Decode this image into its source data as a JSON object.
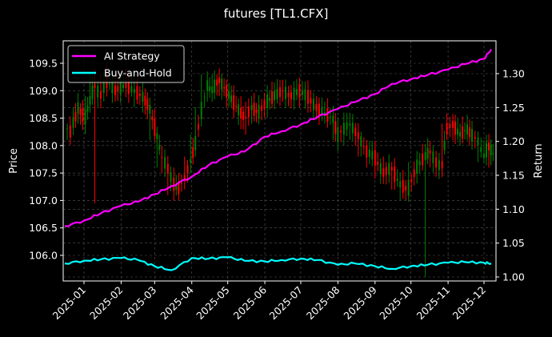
{
  "chart_data": {
    "type": "line",
    "subtype": "candlestick with dual-axis return lines",
    "title": "futures [TL1.CFX]",
    "xlabel": "",
    "ylabel": "Price",
    "ylabel_right": "Return",
    "ylim": [
      105.6,
      109.9
    ],
    "ylim_right": [
      0.995,
      1.343
    ],
    "yticks": [
      "106.0",
      "106.5",
      "107.0",
      "107.5",
      "108.0",
      "108.5",
      "109.0",
      "109.5"
    ],
    "yticks_right": [
      "1.00",
      "1.05",
      "1.10",
      "1.15",
      "1.20",
      "1.25",
      "1.30"
    ],
    "xticks": [
      "2025-01",
      "2025-02",
      "2025-03",
      "2025-04",
      "2025-05",
      "2025-06",
      "2025-07",
      "2025-08",
      "2025-09",
      "2025-10",
      "2025-11",
      "2025-12"
    ],
    "grid": true,
    "legend": {
      "position": "upper left",
      "entries": [
        {
          "label": "AI Strategy",
          "color": "#ff00ff"
        },
        {
          "label": "Buy-and-Hold",
          "color": "#00ffff"
        }
      ]
    },
    "colors": {
      "background": "#000000",
      "up": "#008000",
      "down": "#ff0000",
      "axis": "#ffffff",
      "grid": "#555555"
    },
    "candles": [
      {
        "d": "2024-12-18",
        "o": 108.3,
        "h": 108.4,
        "l": 108.1,
        "c": 108.2
      },
      {
        "d": "2024-12-23",
        "o": 108.4,
        "h": 108.7,
        "l": 108.2,
        "c": 108.6
      },
      {
        "d": "2024-12-27",
        "o": 108.7,
        "h": 108.8,
        "l": 108.4,
        "c": 108.5
      },
      {
        "d": "2025-01-02",
        "o": 108.5,
        "h": 108.9,
        "l": 108.3,
        "c": 108.8
      },
      {
        "d": "2025-01-06",
        "o": 108.8,
        "h": 109.3,
        "l": 108.6,
        "c": 109.1
      },
      {
        "d": "2025-01-10",
        "o": 109.1,
        "h": 109.4,
        "l": 106.95,
        "c": 108.9
      },
      {
        "d": "2025-01-15",
        "o": 108.9,
        "h": 109.3,
        "l": 108.7,
        "c": 109.2
      },
      {
        "d": "2025-01-20",
        "o": 109.2,
        "h": 109.5,
        "l": 108.9,
        "c": 109.0
      },
      {
        "d": "2025-01-27",
        "o": 109.0,
        "h": 109.3,
        "l": 108.8,
        "c": 109.1
      },
      {
        "d": "2025-02-05",
        "o": 109.1,
        "h": 109.4,
        "l": 108.9,
        "c": 109.0
      },
      {
        "d": "2025-02-12",
        "o": 109.0,
        "h": 109.2,
        "l": 108.7,
        "c": 108.9
      },
      {
        "d": "2025-02-19",
        "o": 108.9,
        "h": 109.1,
        "l": 108.6,
        "c": 108.7
      },
      {
        "d": "2025-02-25",
        "o": 108.7,
        "h": 108.8,
        "l": 108.1,
        "c": 108.2
      },
      {
        "d": "2025-03-03",
        "o": 108.2,
        "h": 108.3,
        "l": 107.6,
        "c": 107.8
      },
      {
        "d": "2025-03-07",
        "o": 107.8,
        "h": 108.0,
        "l": 107.5,
        "c": 107.6
      },
      {
        "d": "2025-03-12",
        "o": 107.6,
        "h": 107.8,
        "l": 107.1,
        "c": 107.3
      },
      {
        "d": "2025-03-17",
        "o": 107.3,
        "h": 107.6,
        "l": 107.05,
        "c": 107.2
      },
      {
        "d": "2025-03-21",
        "o": 107.2,
        "h": 107.5,
        "l": 107.0,
        "c": 107.4
      },
      {
        "d": "2025-03-26",
        "o": 107.4,
        "h": 107.8,
        "l": 107.2,
        "c": 107.7
      },
      {
        "d": "2025-03-31",
        "o": 107.7,
        "h": 108.2,
        "l": 107.5,
        "c": 108.0
      },
      {
        "d": "2025-04-04",
        "o": 108.0,
        "h": 108.7,
        "l": 107.8,
        "c": 108.6
      },
      {
        "d": "2025-04-09",
        "o": 108.6,
        "h": 109.3,
        "l": 108.4,
        "c": 109.1
      },
      {
        "d": "2025-04-14",
        "o": 109.1,
        "h": 109.35,
        "l": 108.8,
        "c": 109.0
      },
      {
        "d": "2025-04-18",
        "o": 109.0,
        "h": 109.3,
        "l": 108.8,
        "c": 109.2
      },
      {
        "d": "2025-04-24",
        "o": 109.2,
        "h": 109.35,
        "l": 108.9,
        "c": 109.0
      },
      {
        "d": "2025-04-30",
        "o": 109.0,
        "h": 109.2,
        "l": 108.7,
        "c": 108.8
      },
      {
        "d": "2025-05-06",
        "o": 108.8,
        "h": 109.1,
        "l": 108.5,
        "c": 108.6
      },
      {
        "d": "2025-05-12",
        "o": 108.6,
        "h": 108.9,
        "l": 108.3,
        "c": 108.5
      },
      {
        "d": "2025-05-16",
        "o": 108.5,
        "h": 108.8,
        "l": 108.2,
        "c": 108.7
      },
      {
        "d": "2025-05-21",
        "o": 108.7,
        "h": 108.9,
        "l": 108.4,
        "c": 108.6
      },
      {
        "d": "2025-05-27",
        "o": 108.6,
        "h": 108.9,
        "l": 108.4,
        "c": 108.8
      },
      {
        "d": "2025-06-03",
        "o": 108.8,
        "h": 109.1,
        "l": 108.6,
        "c": 108.9
      },
      {
        "d": "2025-06-09",
        "o": 108.9,
        "h": 109.15,
        "l": 108.7,
        "c": 109.0
      },
      {
        "d": "2025-06-16",
        "o": 109.0,
        "h": 109.2,
        "l": 108.8,
        "c": 108.9
      },
      {
        "d": "2025-06-23",
        "o": 108.9,
        "h": 109.1,
        "l": 108.7,
        "c": 109.0
      },
      {
        "d": "2025-06-30",
        "o": 109.0,
        "h": 109.2,
        "l": 108.8,
        "c": 108.9
      },
      {
        "d": "2025-07-07",
        "o": 108.9,
        "h": 109.1,
        "l": 108.6,
        "c": 108.7
      },
      {
        "d": "2025-07-14",
        "o": 108.7,
        "h": 108.9,
        "l": 108.5,
        "c": 108.6
      },
      {
        "d": "2025-07-21",
        "o": 108.6,
        "h": 108.8,
        "l": 108.4,
        "c": 108.5
      },
      {
        "d": "2025-07-28",
        "o": 108.5,
        "h": 108.7,
        "l": 108.1,
        "c": 108.2
      },
      {
        "d": "2025-08-01",
        "o": 108.2,
        "h": 108.5,
        "l": 107.9,
        "c": 108.3
      },
      {
        "d": "2025-08-06",
        "o": 108.3,
        "h": 108.6,
        "l": 108.0,
        "c": 108.4
      },
      {
        "d": "2025-08-11",
        "o": 108.4,
        "h": 108.6,
        "l": 108.1,
        "c": 108.2
      },
      {
        "d": "2025-08-18",
        "o": 108.2,
        "h": 108.4,
        "l": 107.8,
        "c": 107.9
      },
      {
        "d": "2025-08-25",
        "o": 107.9,
        "h": 108.1,
        "l": 107.6,
        "c": 107.8
      },
      {
        "d": "2025-09-01",
        "o": 107.8,
        "h": 108.0,
        "l": 107.4,
        "c": 107.5
      },
      {
        "d": "2025-09-08",
        "o": 107.5,
        "h": 107.8,
        "l": 107.3,
        "c": 107.6
      },
      {
        "d": "2025-09-15",
        "o": 107.6,
        "h": 107.7,
        "l": 107.2,
        "c": 107.3
      },
      {
        "d": "2025-09-22",
        "o": 107.3,
        "h": 107.5,
        "l": 107.0,
        "c": 107.2
      },
      {
        "d": "2025-09-29",
        "o": 107.2,
        "h": 107.7,
        "l": 107.1,
        "c": 107.6
      },
      {
        "d": "2025-10-06",
        "o": 107.6,
        "h": 107.9,
        "l": 107.4,
        "c": 107.8
      },
      {
        "d": "2025-10-13",
        "o": 107.8,
        "h": 108.0,
        "l": 105.6,
        "c": 107.9
      },
      {
        "d": "2025-10-17",
        "o": 107.9,
        "h": 108.0,
        "l": 107.6,
        "c": 107.7
      },
      {
        "d": "2025-10-22",
        "o": 107.7,
        "h": 107.9,
        "l": 107.5,
        "c": 107.6
      },
      {
        "d": "2025-10-27",
        "o": 107.6,
        "h": 108.4,
        "l": 107.5,
        "c": 108.3
      },
      {
        "d": "2025-10-31",
        "o": 108.3,
        "h": 108.5,
        "l": 108.1,
        "c": 108.4
      },
      {
        "d": "2025-11-05",
        "o": 108.4,
        "h": 108.5,
        "l": 108.1,
        "c": 108.2
      },
      {
        "d": "2025-11-11",
        "o": 108.2,
        "h": 108.4,
        "l": 108.0,
        "c": 108.3
      },
      {
        "d": "2025-11-17",
        "o": 108.3,
        "h": 108.4,
        "l": 108.1,
        "c": 108.2
      },
      {
        "d": "2025-11-21",
        "o": 108.2,
        "h": 108.4,
        "l": 108.0,
        "c": 108.1
      },
      {
        "d": "2025-11-26",
        "o": 108.1,
        "h": 108.2,
        "l": 107.7,
        "c": 107.8
      },
      {
        "d": "2025-12-01",
        "o": 107.8,
        "h": 108.1,
        "l": 107.7,
        "c": 108.0
      },
      {
        "d": "2025-12-05",
        "o": 108.0,
        "h": 108.1,
        "l": 107.6,
        "c": 107.8
      }
    ],
    "series": [
      {
        "name": "AI Strategy",
        "axis": "right",
        "color": "#ff00ff",
        "x": [
          "2024-12-16",
          "2025-01-01",
          "2025-01-15",
          "2025-02-01",
          "2025-02-15",
          "2025-03-01",
          "2025-03-15",
          "2025-04-01",
          "2025-04-15",
          "2025-05-01",
          "2025-05-15",
          "2025-06-01",
          "2025-06-15",
          "2025-07-01",
          "2025-07-15",
          "2025-08-01",
          "2025-08-15",
          "2025-09-01",
          "2025-09-15",
          "2025-10-01",
          "2025-10-15",
          "2025-11-01",
          "2025-11-15",
          "2025-12-01",
          "2025-12-08"
        ],
        "values": [
          1.075,
          1.083,
          1.094,
          1.105,
          1.111,
          1.122,
          1.134,
          1.148,
          1.165,
          1.178,
          1.185,
          1.207,
          1.215,
          1.225,
          1.236,
          1.248,
          1.258,
          1.27,
          1.285,
          1.292,
          1.298,
          1.306,
          1.314,
          1.322,
          1.336
        ]
      },
      {
        "name": "Buy-and-Hold",
        "axis": "right",
        "color": "#00ffff",
        "x": [
          "2024-12-16",
          "2025-01-01",
          "2025-01-15",
          "2025-02-01",
          "2025-02-15",
          "2025-03-01",
          "2025-03-15",
          "2025-04-01",
          "2025-04-15",
          "2025-05-01",
          "2025-05-15",
          "2025-06-01",
          "2025-06-15",
          "2025-07-01",
          "2025-07-15",
          "2025-08-01",
          "2025-08-15",
          "2025-09-01",
          "2025-09-15",
          "2025-10-01",
          "2025-10-15",
          "2025-11-01",
          "2025-11-15",
          "2025-12-01",
          "2025-12-08"
        ],
        "values": [
          1.02,
          1.024,
          1.026,
          1.028,
          1.025,
          1.016,
          1.01,
          1.028,
          1.027,
          1.029,
          1.024,
          1.023,
          1.025,
          1.027,
          1.025,
          1.018,
          1.02,
          1.016,
          1.012,
          1.016,
          1.018,
          1.021,
          1.022,
          1.021,
          1.02
        ]
      }
    ]
  }
}
